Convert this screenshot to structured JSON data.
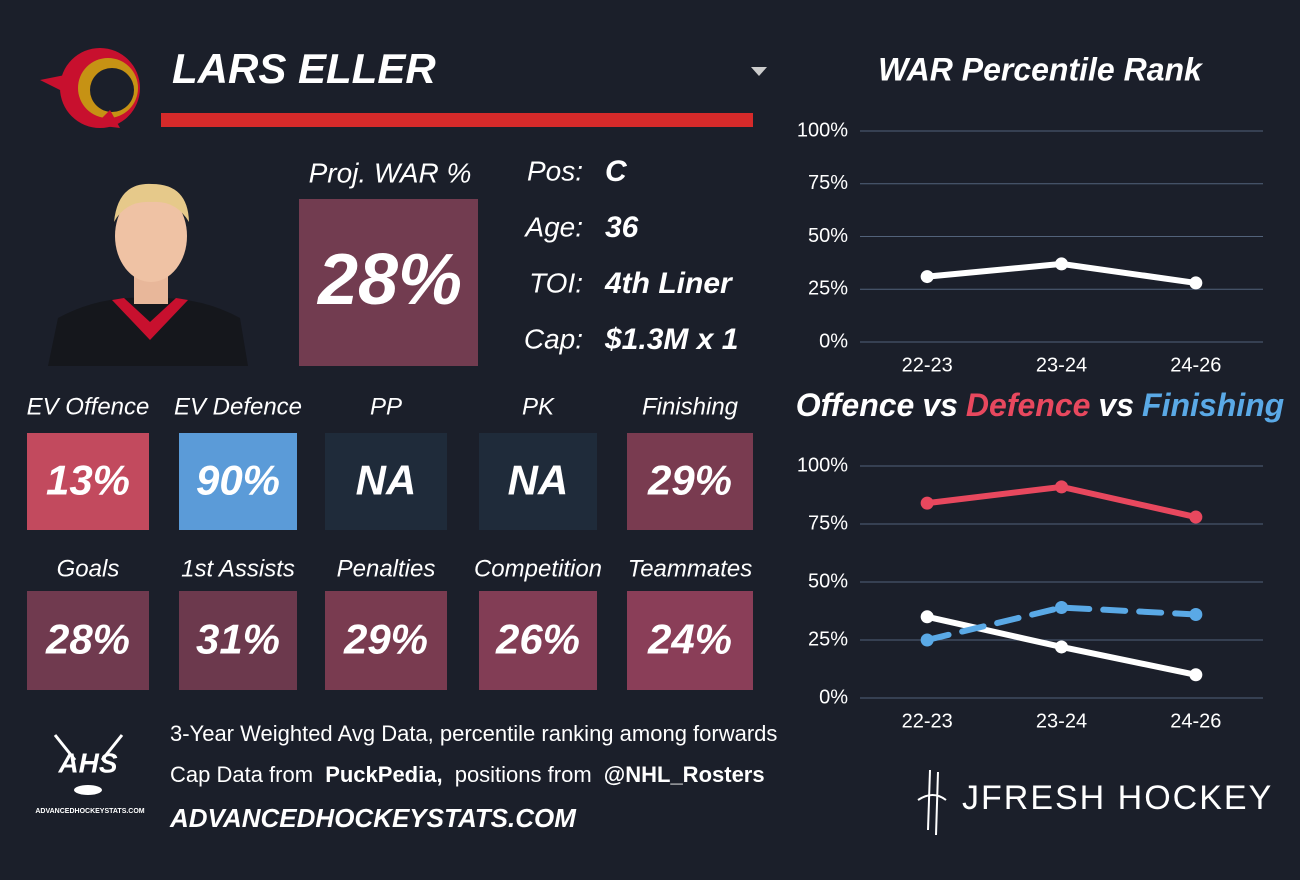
{
  "header": {
    "player_name": "LARS ELLER"
  },
  "projection": {
    "label": "Proj. WAR %",
    "value": "28%",
    "color": "#723c50"
  },
  "info": [
    {
      "label": "Pos:",
      "value": "C"
    },
    {
      "label": "Age:",
      "value": "36"
    },
    {
      "label": "TOI:",
      "value": "4th Liner"
    },
    {
      "label": "Cap:",
      "value": "$1.3M x 1"
    }
  ],
  "tiles": [
    {
      "label": "EV Offence",
      "value": "13%",
      "color": "#c24a5e"
    },
    {
      "label": "EV Defence",
      "value": "90%",
      "color": "#5b9bd8"
    },
    {
      "label": "PP",
      "value": "NA",
      "color": "#1f2b3a"
    },
    {
      "label": "PK",
      "value": "NA",
      "color": "#1f2b3a"
    },
    {
      "label": "Finishing",
      "value": "29%",
      "color": "#793b50"
    },
    {
      "label": "Goals",
      "value": "28%",
      "color": "#703a4f"
    },
    {
      "label": "1st Assists",
      "value": "31%",
      "color": "#6c394d"
    },
    {
      "label": "Penalties",
      "value": "29%",
      "color": "#793b50"
    },
    {
      "label": "Competition",
      "value": "26%",
      "color": "#823d55"
    },
    {
      "label": "Teammates",
      "value": "24%",
      "color": "#8a3e58"
    }
  ],
  "footer": {
    "logo": "AHS",
    "logo_caption": "ADVANCEDHOCKEYSTATS.COM",
    "line1": "3-Year Weighted Avg Data, percentile ranking among forwards",
    "line2": [
      "Cap Data from",
      "PuckPedia,",
      "positions from",
      "@NHL_Rosters"
    ],
    "website": "ADVANCEDHOCKEYSTATS.COM",
    "brand": "JFRESH HOCKEY"
  },
  "chart_data": [
    {
      "type": "line",
      "title": "WAR Percentile Rank",
      "categories": [
        "22-23",
        "23-24",
        "24-26"
      ],
      "values": [
        31,
        37,
        28
      ],
      "color": "#ffffff",
      "ylim": [
        0,
        100
      ],
      "yticks": [
        {
          "value": 0,
          "label": "0%"
        },
        {
          "value": 25,
          "label": "25%"
        },
        {
          "value": 50,
          "label": "50%"
        },
        {
          "value": 75,
          "label": "75%"
        },
        {
          "value": 100,
          "label": "100%"
        }
      ],
      "grid": true
    },
    {
      "type": "line",
      "title_joiner": "vs",
      "categories": [
        "22-23",
        "23-24",
        "24-26"
      ],
      "series": [
        {
          "name": "Offence",
          "color": "#ffffff",
          "values": [
            35,
            22,
            10
          ],
          "line_style": "solid"
        },
        {
          "name": "Defence",
          "color": "#e8485e",
          "values": [
            84,
            91,
            78
          ],
          "line_style": "solid"
        },
        {
          "name": "Finishing",
          "color": "#5aa9e6",
          "values": [
            25,
            39,
            36
          ],
          "line_style": "dashed"
        }
      ],
      "ylim": [
        0,
        100
      ],
      "yticks": [
        {
          "value": 0,
          "label": "0%"
        },
        {
          "value": 25,
          "label": "25%"
        },
        {
          "value": 50,
          "label": "50%"
        },
        {
          "value": 75,
          "label": "75%"
        },
        {
          "value": 100,
          "label": "100%"
        }
      ],
      "grid": true
    }
  ]
}
